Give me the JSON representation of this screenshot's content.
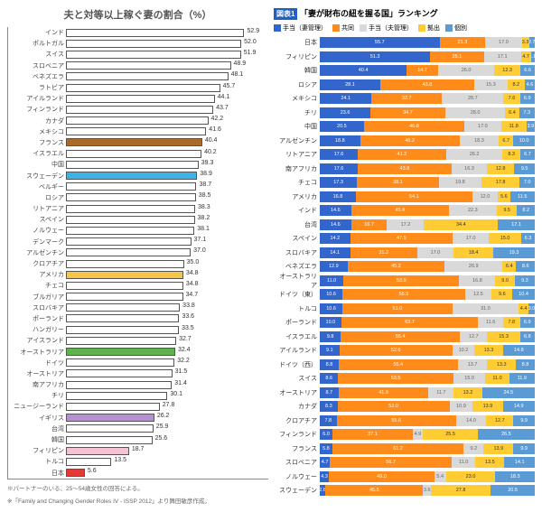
{
  "left_chart": {
    "title": "夫と対等以上稼ぐ妻の割合（%）",
    "title_fontsize": 11,
    "xmax": 60,
    "default_bar_color": "#ffffff",
    "default_border": "#555555",
    "rows": [
      {
        "label": "インド",
        "value": 52.9,
        "color": "#ffffff"
      },
      {
        "label": "ポルトガル",
        "value": 52.0,
        "color": "#ffffff"
      },
      {
        "label": "スイス",
        "value": 51.9,
        "color": "#ffffff"
      },
      {
        "label": "スロベニア",
        "value": 48.9,
        "color": "#ffffff"
      },
      {
        "label": "ベネズエラ",
        "value": 48.1,
        "color": "#ffffff"
      },
      {
        "label": "ラトビア",
        "value": 45.7,
        "color": "#ffffff"
      },
      {
        "label": "アイルランド",
        "value": 44.1,
        "color": "#ffffff"
      },
      {
        "label": "フィンランド",
        "value": 43.7,
        "color": "#ffffff"
      },
      {
        "label": "カナダ",
        "value": 42.2,
        "color": "#ffffff"
      },
      {
        "label": "メキシコ",
        "value": 41.6,
        "color": "#ffffff"
      },
      {
        "label": "フランス",
        "value": 40.4,
        "color": "#a86b2a"
      },
      {
        "label": "イスラエル",
        "value": 40.2,
        "color": "#ffffff"
      },
      {
        "label": "中国",
        "value": 39.3,
        "color": "#ffffff"
      },
      {
        "label": "スウェーデン",
        "value": 38.9,
        "color": "#3db4e8"
      },
      {
        "label": "ベルギー",
        "value": 38.7,
        "color": "#ffffff"
      },
      {
        "label": "ロシア",
        "value": 38.5,
        "color": "#ffffff"
      },
      {
        "label": "リトアニア",
        "value": 38.3,
        "color": "#ffffff"
      },
      {
        "label": "スペイン",
        "value": 38.2,
        "color": "#ffffff"
      },
      {
        "label": "ノルウェー",
        "value": 38.1,
        "color": "#ffffff"
      },
      {
        "label": "デンマーク",
        "value": 37.1,
        "color": "#ffffff"
      },
      {
        "label": "アルゼンチン",
        "value": 37.0,
        "color": "#ffffff"
      },
      {
        "label": "クロアチア",
        "value": 35.0,
        "color": "#ffffff"
      },
      {
        "label": "アメリカ",
        "value": 34.8,
        "color": "#f5c54a"
      },
      {
        "label": "チェコ",
        "value": 34.8,
        "color": "#ffffff"
      },
      {
        "label": "ブルガリア",
        "value": 34.7,
        "color": "#ffffff"
      },
      {
        "label": "スロバキア",
        "value": 33.8,
        "color": "#ffffff"
      },
      {
        "label": "ポーランド",
        "value": 33.6,
        "color": "#ffffff"
      },
      {
        "label": "ハンガリー",
        "value": 33.5,
        "color": "#ffffff"
      },
      {
        "label": "アイスランド",
        "value": 32.7,
        "color": "#ffffff"
      },
      {
        "label": "オーストラリア",
        "value": 32.4,
        "color": "#5fb24f"
      },
      {
        "label": "ドイツ",
        "value": 32.2,
        "color": "#ffffff"
      },
      {
        "label": "オーストリア",
        "value": 31.5,
        "color": "#ffffff"
      },
      {
        "label": "南アフリカ",
        "value": 31.4,
        "color": "#ffffff"
      },
      {
        "label": "チリ",
        "value": 30.1,
        "color": "#ffffff"
      },
      {
        "label": "ニュージーランド",
        "value": 27.8,
        "color": "#ffffff"
      },
      {
        "label": "イギリス",
        "value": 26.2,
        "color": "#b88fd4"
      },
      {
        "label": "台湾",
        "value": 25.9,
        "color": "#ffffff"
      },
      {
        "label": "韓国",
        "value": 25.6,
        "color": "#ffffff"
      },
      {
        "label": "フィリピン",
        "value": 18.7,
        "color": "#f4c2d4"
      },
      {
        "label": "トルコ",
        "value": 13.5,
        "color": "#ffffff"
      },
      {
        "label": "日本",
        "value": 5.6,
        "color": "#e53935"
      }
    ],
    "footnotes": [
      "※パートナーのいる、25～54歳女性の回答による。",
      "※「Family and Changing Gender Roles IV - ISSP 2012」より舞田敏彦作成。"
    ]
  },
  "right_chart": {
    "header_label": "図表1",
    "title": "「妻が財布の紐を握る国」ランキング",
    "legend": [
      {
        "label": "手当（妻管理）",
        "color": "#3366cc"
      },
      {
        "label": "共同",
        "color": "#ff8c1a"
      },
      {
        "label": "手当（夫管理）",
        "color": "#d9d9d9"
      },
      {
        "label": "拠出",
        "color": "#ffcc33"
      },
      {
        "label": "個別",
        "color": "#5b9bd5"
      }
    ],
    "rows": [
      {
        "label": "日本",
        "seg": [
          55.7,
          21.3,
          17.0,
          3.3,
          2.7
        ]
      },
      {
        "label": "フィリピン",
        "seg": [
          51.3,
          25.1,
          17.1,
          4.7,
          1.8
        ]
      },
      {
        "label": "韓国",
        "seg": [
          40.4,
          14.7,
          26.0,
          12.3,
          6.6
        ]
      },
      {
        "label": "ロシア",
        "seg": [
          28.1,
          43.8,
          15.3,
          8.2,
          4.6
        ]
      },
      {
        "label": "メキシコ",
        "seg": [
          24.1,
          32.7,
          28.7,
          7.6,
          6.9
        ]
      },
      {
        "label": "チリ",
        "seg": [
          23.6,
          34.7,
          28.0,
          6.4,
          7.3
        ]
      },
      {
        "label": "中国",
        "seg": [
          20.5,
          46.8,
          17.0,
          11.8,
          3.9
        ]
      },
      {
        "label": "アルゼンチン",
        "seg": [
          18.8,
          46.2,
          18.3,
          6.7,
          10.0
        ]
      },
      {
        "label": "リトアニア",
        "seg": [
          17.6,
          41.2,
          26.2,
          8.3,
          6.7
        ]
      },
      {
        "label": "南アフリカ",
        "seg": [
          17.6,
          43.8,
          16.3,
          12.8,
          9.5
        ]
      },
      {
        "label": "チェコ",
        "seg": [
          17.3,
          38.1,
          19.8,
          17.8,
          7.0
        ]
      },
      {
        "label": "アメリカ",
        "seg": [
          16.8,
          54.1,
          12.0,
          5.6,
          11.5
        ]
      },
      {
        "label": "インド",
        "seg": [
          14.6,
          45.4,
          22.3,
          9.5,
          8.2
        ]
      },
      {
        "label": "台湾",
        "seg": [
          14.6,
          16.7,
          17.2,
          34.4,
          17.1
        ]
      },
      {
        "label": "スペイン",
        "seg": [
          14.2,
          47.5,
          17.0,
          15.0,
          6.3
        ]
      },
      {
        "label": "スロバキア",
        "seg": [
          14.1,
          31.2,
          17.0,
          18.4,
          19.3
        ]
      },
      {
        "label": "ベネズエラ",
        "seg": [
          12.9,
          45.2,
          26.9,
          6.4,
          8.6
        ]
      },
      {
        "label": "オーストラリア",
        "seg": [
          11.0,
          53.9,
          16.8,
          9.0,
          9.3
        ]
      },
      {
        "label": "ドイツ（東）",
        "seg": [
          10.6,
          56.9,
          12.5,
          9.6,
          10.4
        ]
      },
      {
        "label": "トルコ",
        "seg": [
          10.6,
          51.0,
          31.0,
          4.4,
          3.0
        ]
      },
      {
        "label": "ポーランド",
        "seg": [
          10.0,
          63.7,
          11.6,
          7.8,
          6.9
        ]
      },
      {
        "label": "イスラエル",
        "seg": [
          9.8,
          55.4,
          12.7,
          15.3,
          6.8
        ]
      },
      {
        "label": "アイルランド",
        "seg": [
          9.1,
          52.6,
          10.2,
          13.3,
          14.8
        ]
      },
      {
        "label": "ドイツ（西）",
        "seg": [
          8.8,
          55.4,
          13.7,
          13.3,
          8.8
        ]
      },
      {
        "label": "スイス",
        "seg": [
          8.6,
          53.5,
          15.0,
          11.0,
          11.9
        ]
      },
      {
        "label": "オーストリア",
        "seg": [
          8.7,
          41.9,
          11.7,
          13.2,
          24.5
        ]
      },
      {
        "label": "カナダ",
        "seg": [
          8.3,
          52.0,
          10.9,
          13.9,
          14.9
        ]
      },
      {
        "label": "クロアチア",
        "seg": [
          7.8,
          55.6,
          14.0,
          12.7,
          9.9
        ]
      },
      {
        "label": "フィンランド",
        "seg": [
          6.0,
          37.1,
          4.9,
          25.5,
          26.5
        ]
      },
      {
        "label": "フランス",
        "seg": [
          5.8,
          61.2,
          9.2,
          13.9,
          9.9
        ]
      },
      {
        "label": "スロベニア",
        "seg": [
          4.7,
          56.7,
          11.0,
          13.5,
          14.1
        ]
      },
      {
        "label": "ノルウェー",
        "seg": [
          4.3,
          49.0,
          5.4,
          23.0,
          18.3
        ]
      },
      {
        "label": "スウェーデン",
        "seg": [
          2.6,
          45.5,
          3.6,
          27.8,
          20.5
        ]
      }
    ]
  }
}
